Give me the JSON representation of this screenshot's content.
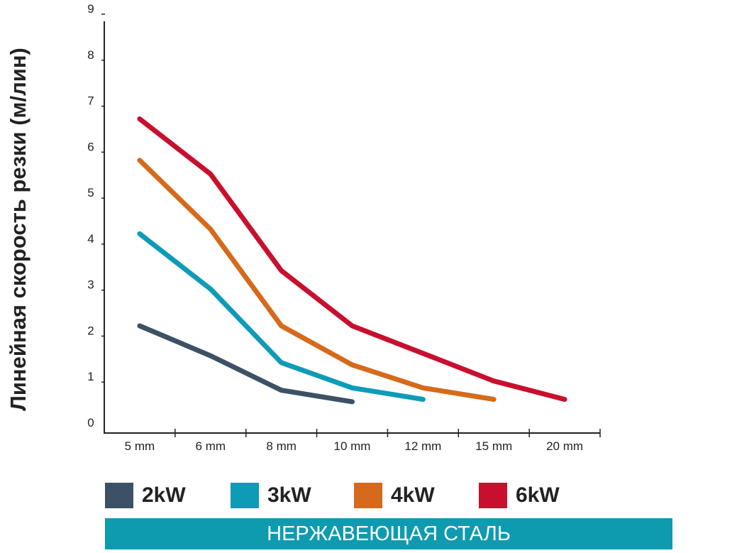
{
  "chart_data": {
    "type": "line",
    "categories": [
      "5 mm",
      "6 mm",
      "8 mm",
      "10 mm",
      "12 mm",
      "15 mm",
      "20 mm"
    ],
    "ylabel": "Линейная скорость резки (м/лин)",
    "ylim": [
      0,
      9
    ],
    "yticks": [
      "0",
      "1",
      "2",
      "3",
      "4",
      "5",
      "6",
      "7",
      "8",
      "9"
    ],
    "series": [
      {
        "name": "2kW",
        "color": "#3c5264",
        "values": [
          2.1,
          1.45,
          0.7,
          0.45,
          null,
          null,
          null
        ]
      },
      {
        "name": "3kW",
        "color": "#0e9bb8",
        "values": [
          4.1,
          2.9,
          1.3,
          0.75,
          0.5,
          null,
          null
        ]
      },
      {
        "name": "4kW",
        "color": "#d66a1c",
        "values": [
          5.7,
          4.2,
          2.1,
          1.25,
          0.75,
          0.5,
          null
        ]
      },
      {
        "name": "6kW",
        "color": "#c8102e",
        "values": [
          6.6,
          5.4,
          3.3,
          2.1,
          1.5,
          0.9,
          0.5
        ]
      }
    ]
  },
  "footer": {
    "text": "НЕРЖАВЕЮЩАЯ СТАЛЬ",
    "color": "#0e9bb0"
  }
}
